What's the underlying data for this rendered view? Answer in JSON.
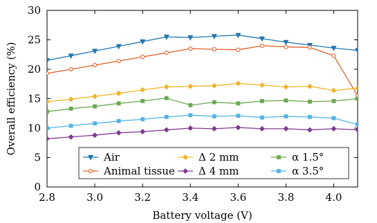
{
  "chart_data": {
    "type": "line",
    "xlabel": "Battery voltage (V)",
    "ylabel": "Overall efficiency (%)",
    "xlim": [
      2.8,
      4.1
    ],
    "ylim": [
      0,
      30
    ],
    "xticks": [
      2.8,
      3.0,
      3.2,
      3.4,
      3.6,
      3.8,
      4.0
    ],
    "xtick_labels": [
      "2.8",
      "3.0",
      "3.2",
      "3.4",
      "3.6",
      "3.8",
      "4.0"
    ],
    "yticks": [
      0,
      5,
      10,
      15,
      20,
      25,
      30
    ],
    "ytick_labels": [
      "0",
      "5",
      "10",
      "15",
      "20",
      "25",
      "30"
    ],
    "grid": false,
    "legend_position": "bottom",
    "x": [
      2.8,
      2.9,
      3.0,
      3.1,
      3.2,
      3.3,
      3.4,
      3.5,
      3.6,
      3.7,
      3.8,
      3.9,
      4.0,
      4.1
    ],
    "series": [
      {
        "name": "Air",
        "color": "#1f77b4",
        "marker": "triangle-down",
        "values": [
          21.5,
          22.3,
          23.1,
          23.9,
          24.7,
          25.5,
          25.4,
          25.6,
          25.8,
          25.2,
          24.6,
          24.1,
          23.6,
          23.2
        ]
      },
      {
        "name": "Animal tissue",
        "color": "#e0622b",
        "marker": "circle",
        "values": [
          19.3,
          20.0,
          20.7,
          21.4,
          22.1,
          22.8,
          23.5,
          23.4,
          23.3,
          24.0,
          23.8,
          23.7,
          22.3,
          15.5
        ]
      },
      {
        "name": "Δ 2 mm",
        "color": "#f0b323",
        "marker": "diamond",
        "values": [
          14.5,
          14.9,
          15.4,
          15.9,
          16.5,
          17.0,
          17.1,
          17.2,
          17.6,
          17.3,
          17.0,
          17.1,
          16.4,
          16.8
        ]
      },
      {
        "name": "Δ 4 mm",
        "color": "#7e3a8f",
        "marker": "diamond",
        "values": [
          8.2,
          8.5,
          8.8,
          9.2,
          9.4,
          9.7,
          10.0,
          9.9,
          10.1,
          9.9,
          9.9,
          9.7,
          9.9,
          9.7
        ]
      },
      {
        "name": "α 1.5°",
        "color": "#6aa84f",
        "marker": "square",
        "values": [
          12.8,
          13.3,
          13.7,
          14.2,
          14.6,
          15.1,
          13.9,
          14.4,
          14.2,
          14.6,
          14.7,
          14.5,
          14.6,
          15.0
        ]
      },
      {
        "name": "α 3.5°",
        "color": "#4fb3e6",
        "marker": "square",
        "values": [
          10.0,
          10.4,
          10.8,
          11.2,
          11.5,
          11.9,
          12.2,
          12.0,
          12.1,
          11.8,
          12.0,
          11.9,
          11.7,
          10.6
        ]
      }
    ]
  }
}
